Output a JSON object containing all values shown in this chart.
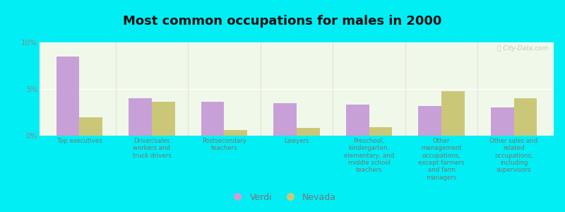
{
  "title": "Most common occupations for males in 2000",
  "categories": [
    "Top executives",
    "Driver/sales\nworkers and\ntruck drivers",
    "Postsecondary\nteachers",
    "Lawyers",
    "Preschool,\nkindergarten,\nelementary, and\nmiddle school\nteachers",
    "Other\nmanagement\noccupations,\nexcept farmers\nand farm\nmanagers",
    "Other sales and\nrelated\noccupations,\nincluding\nsupervisors"
  ],
  "verdi_values": [
    8.5,
    4.0,
    3.6,
    3.5,
    3.3,
    3.2,
    3.0
  ],
  "nevada_values": [
    2.0,
    3.6,
    0.6,
    0.8,
    0.9,
    4.8,
    4.0
  ],
  "verdi_color": "#c8a0d8",
  "nevada_color": "#cac878",
  "background_color": "#00eef4",
  "plot_bg": "#f0f8ea",
  "ylim": [
    0,
    10
  ],
  "yticks": [
    0,
    5,
    10
  ],
  "ytick_labels": [
    "0%",
    "5%",
    "10%"
  ],
  "bar_width": 0.32,
  "title_fontsize": 13,
  "legend_labels": [
    "Verdi",
    "Nevada"
  ],
  "watermark": "ⓘ City-Data.com",
  "tick_color": "#888888",
  "label_color": "#777777"
}
